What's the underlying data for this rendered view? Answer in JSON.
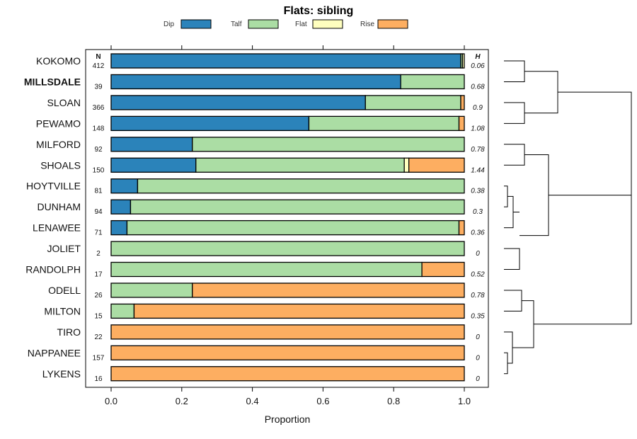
{
  "chart_data": {
    "type": "bar",
    "orientation": "horizontal",
    "stacked": true,
    "title": "Flats: sibling",
    "xlabel": "Proportion",
    "ylabel": "",
    "xlim": [
      0,
      1
    ],
    "x_ticks": [
      "0.0",
      "0.2",
      "0.4",
      "0.6",
      "0.8",
      "1.0"
    ],
    "x_tick_values": [
      0,
      0.2,
      0.4,
      0.6,
      0.8,
      1.0
    ],
    "n_header": "N",
    "h_header": "H",
    "legend": [
      {
        "name": "Dip",
        "color": "#2b83ba"
      },
      {
        "name": "Talf",
        "color": "#abdda4"
      },
      {
        "name": "Flat",
        "color": "#ffffbf"
      },
      {
        "name": "Rise",
        "color": "#fdae61"
      }
    ],
    "highlight_category": "MILLSDALE",
    "categories": [
      "KOKOMO",
      "MILLSDALE",
      "SLOAN",
      "PEWAMO",
      "MILFORD",
      "SHOALS",
      "HOYTVILLE",
      "DUNHAM",
      "LENAWEE",
      "JOLIET",
      "RANDOLPH",
      "ODELL",
      "MILTON",
      "TIRO",
      "NAPPANEE",
      "LYKENS"
    ],
    "n": [
      "412",
      "39",
      "366",
      "148",
      "92",
      "150",
      "81",
      "94",
      "71",
      "2",
      "17",
      "26",
      "15",
      "22",
      "157",
      "16"
    ],
    "h": [
      "0.06",
      "0.68",
      "0.9",
      "1.08",
      "0.78",
      "1.44",
      "0.38",
      "0.3",
      "0.36",
      "0",
      "0.52",
      "0.78",
      "0.35",
      "0",
      "0",
      "0"
    ],
    "series": [
      {
        "name": "Dip",
        "values": [
          0.99,
          0.82,
          0.72,
          0.56,
          0.23,
          0.24,
          0.075,
          0.055,
          0.045,
          0,
          0,
          0,
          0,
          0,
          0,
          0
        ]
      },
      {
        "name": "Talf",
        "values": [
          0.005,
          0.18,
          0.27,
          0.425,
          0.77,
          0.59,
          0.925,
          0.945,
          0.94,
          1.0,
          0.88,
          0.23,
          0.065,
          0,
          0,
          0
        ]
      },
      {
        "name": "Flat",
        "values": [
          0.005,
          0,
          0,
          0,
          0,
          0.013,
          0,
          0,
          0,
          0,
          0,
          0,
          0,
          0,
          0,
          0
        ]
      },
      {
        "name": "Rise",
        "values": [
          0,
          0,
          0.01,
          0.015,
          0,
          0.157,
          0,
          0,
          0.015,
          0,
          0.12,
          0.77,
          0.935,
          1.0,
          1.0,
          1.0
        ]
      }
    ],
    "dendrogram": "hierarchical clustering of series on the right"
  }
}
